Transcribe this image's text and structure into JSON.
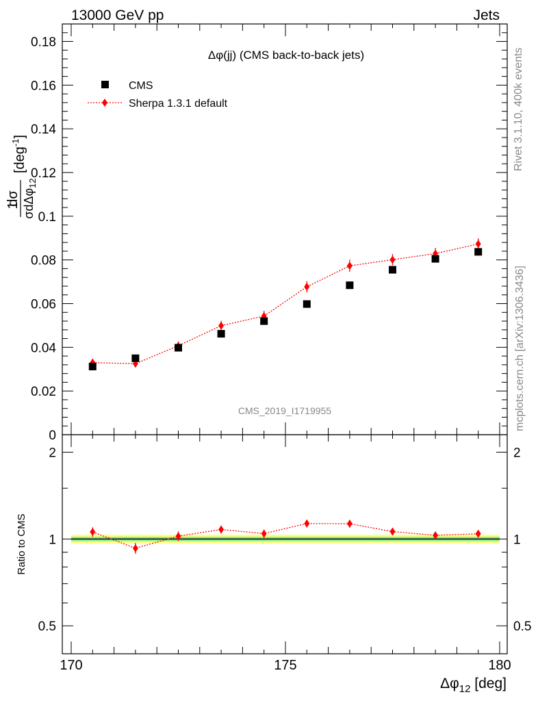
{
  "header": {
    "left": "13000 GeV pp",
    "right": "Jets"
  },
  "side_labels": {
    "rivet": "Rivet 3.1.10,  400k events",
    "mcplots": "mcplots.cern.ch [arXiv:1306.3436]"
  },
  "plot_title": "Δφ(jj) (CMS back-to-back jets)",
  "watermark": "CMS_2019_I1719955",
  "legend": {
    "data_label": "CMS",
    "mc_label": "Sherpa 1.3.1 default"
  },
  "axes": {
    "ylabel_main_num": "1",
    "ylabel_main_d": "dσ",
    "ylabel_main_den": "σdΔφ",
    "ylabel_main_den_sub": "12",
    "ylabel_main_unit": "[deg",
    "ylabel_main_unit_sup": "-1",
    "ylabel_main_unit_close": "]",
    "ylabel_ratio": "Ratio to CMS",
    "xlabel": "Δφ",
    "xlabel_sub": "12",
    "xlabel_unit": " [deg]"
  },
  "colors": {
    "data": "#000000",
    "mc": "#ff0000",
    "band_outer": "#ffff80",
    "band_inner": "#90ee90"
  },
  "chart_data": [
    {
      "type": "scatter",
      "panel": "main",
      "x": [
        170.5,
        171.5,
        172.5,
        173.5,
        174.5,
        175.5,
        176.5,
        177.5,
        178.5,
        179.5
      ],
      "xlim": [
        170,
        180
      ],
      "ylim": [
        0,
        0.188
      ],
      "yticks": [
        0,
        0.02,
        0.04,
        0.06,
        0.08,
        0.1,
        0.12,
        0.14,
        0.16,
        0.18
      ],
      "ytick_labels": [
        "0",
        "0.02",
        "0.04",
        "0.06",
        "0.08",
        "0.1",
        "0.12",
        "0.14",
        "0.16",
        "0.18"
      ],
      "xticks": [
        170,
        175,
        180
      ],
      "xtick_labels": [
        "170",
        "175",
        "180"
      ],
      "series": [
        {
          "name": "CMS",
          "style": "markers",
          "values": [
            0.0312,
            0.035,
            0.0398,
            0.0462,
            0.052,
            0.0598,
            0.0684,
            0.0755,
            0.0805,
            0.0837
          ]
        },
        {
          "name": "Sherpa 1.3.1 default",
          "style": "dotted-line-diamonds",
          "values": [
            0.033,
            0.0325,
            0.0407,
            0.0499,
            0.0543,
            0.0677,
            0.0773,
            0.0801,
            0.0829,
            0.0873
          ],
          "errors": [
            0.0018,
            0.0015,
            0.002,
            0.0022,
            0.0024,
            0.0026,
            0.0028,
            0.0026,
            0.0026,
            0.0026
          ]
        }
      ]
    },
    {
      "type": "line",
      "panel": "ratio",
      "x": [
        170.5,
        171.5,
        172.5,
        173.5,
        174.5,
        175.5,
        176.5,
        177.5,
        178.5,
        179.5
      ],
      "xlim": [
        170,
        180
      ],
      "ylim": [
        0.4,
        2.3
      ],
      "yscale": "log",
      "yticks": [
        0.5,
        1,
        2
      ],
      "ytick_labels": [
        "0.5",
        "1",
        "2"
      ],
      "reference": 1,
      "series": [
        {
          "name": "Sherpa 1.3.1 default",
          "values": [
            1.058,
            0.929,
            1.023,
            1.079,
            1.044,
            1.132,
            1.13,
            1.061,
            1.03,
            1.043
          ],
          "errors": [
            0.04,
            0.04,
            0.04,
            0.035,
            0.035,
            0.035,
            0.035,
            0.03,
            0.03,
            0.03
          ]
        }
      ]
    }
  ]
}
